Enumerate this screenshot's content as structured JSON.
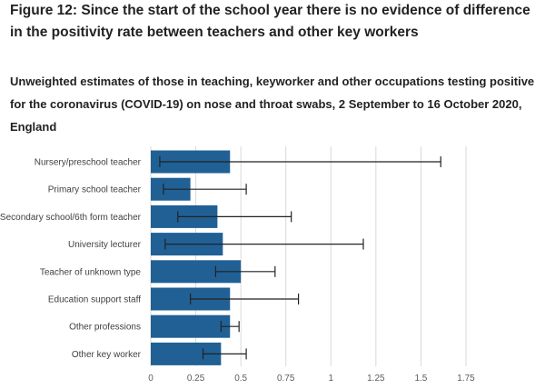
{
  "figure": {
    "title": "Figure 12: Since the start of the school year there is no evidence of difference in the positivity rate between teachers and other key workers",
    "subtitle": "Unweighted estimates of those in teaching, keyworker and other occupations testing positive for the coronavirus (COVID-19) on nose and throat swabs, 2 September to 16 October 2020, England"
  },
  "chart_data": {
    "type": "bar",
    "orientation": "horizontal",
    "title": "Figure 12: Since the start of the school year there is no evidence of difference in the positivity rate between teachers and other key workers",
    "subtitle": "Unweighted estimates of those in teaching, keyworker and other occupations testing positive for the coronavirus (COVID-19) on nose and throat swabs, 2 September to 16 October 2020, England",
    "xlabel": "",
    "ylabel": "",
    "categories": [
      "Nursery/preschool teacher",
      "Primary school teacher",
      "Secondary school/6th form teacher",
      "University lecturer",
      "Teacher of unknown type",
      "Education support staff",
      "Other professions",
      "Other key worker"
    ],
    "values": [
      0.44,
      0.22,
      0.37,
      0.4,
      0.5,
      0.44,
      0.44,
      0.39
    ],
    "error_low": [
      0.05,
      0.07,
      0.15,
      0.08,
      0.36,
      0.22,
      0.39,
      0.29
    ],
    "error_high": [
      1.61,
      0.53,
      0.78,
      1.18,
      0.69,
      0.82,
      0.49,
      0.53
    ],
    "xlim": [
      0,
      1.75
    ],
    "xticks": [
      0,
      0.25,
      0.5,
      0.75,
      1,
      1.25,
      1.5,
      1.75
    ],
    "xtick_labels": [
      "0",
      "0.25",
      "0.5",
      "0.75",
      "1",
      "1.25",
      "1.5",
      "1.75"
    ],
    "grid": true,
    "legend": "none",
    "colors": {
      "bar": "#206095",
      "error_bar": "#222222",
      "grid": "#d9d9d9",
      "axis_text": "#5c5c5c",
      "category_text": "#414042"
    }
  }
}
